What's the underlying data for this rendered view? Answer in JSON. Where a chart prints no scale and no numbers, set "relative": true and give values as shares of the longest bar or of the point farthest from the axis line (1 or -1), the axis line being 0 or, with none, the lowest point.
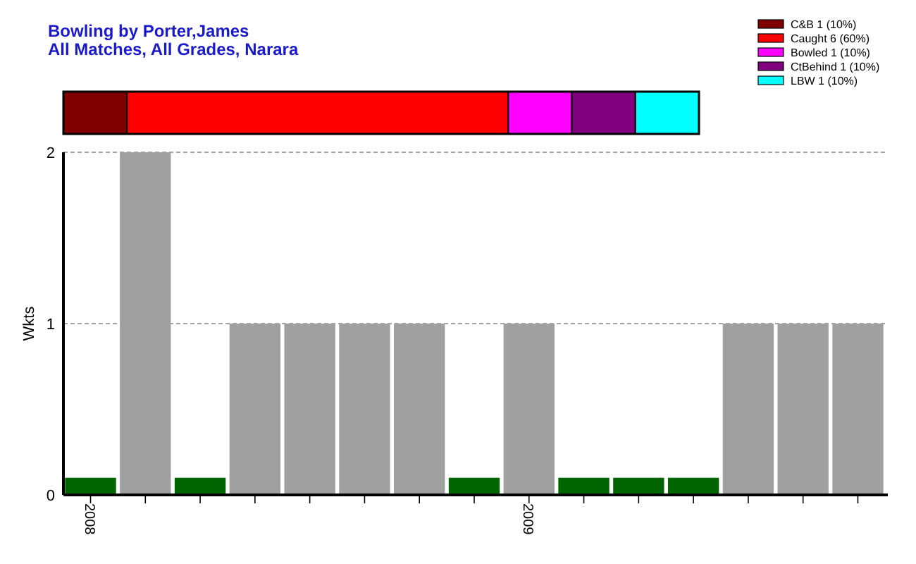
{
  "chart_data": [
    {
      "type": "bar",
      "title": "Bowling by Porter,James",
      "subtitle": "All Matches, All Grades, Narara",
      "orientation": "horizontal",
      "stacked": true,
      "relative": true,
      "categories": [
        null
      ],
      "legend": "top right",
      "series": [
        {
          "name": "C&B 1 (10%)",
          "color": "#800000",
          "values": [
            0.1
          ]
        },
        {
          "name": "Caught 6 (60%)",
          "color": "#ff0000",
          "values": [
            0.6
          ]
        },
        {
          "name": "Bowled 1 (10%)",
          "color": "#ff00ff",
          "values": [
            0.1
          ]
        },
        {
          "name": "CtBehind 1 (10%)",
          "color": "#800080",
          "values": [
            0.1
          ]
        },
        {
          "name": "LBW 1 (10%)",
          "color": "#00ffff",
          "values": [
            0.1
          ]
        }
      ]
    },
    {
      "type": "bar",
      "ylabel": "Wkts",
      "categories": [
        "2008",
        null,
        null,
        null,
        null,
        null,
        null,
        null,
        "2009",
        null,
        null,
        null,
        null,
        null,
        null
      ],
      "values": [
        0.1,
        2,
        0.1,
        1,
        1,
        1,
        1,
        0.1,
        1,
        0.1,
        0.1,
        0.1,
        1,
        1,
        1
      ],
      "colors": [
        "#006400",
        "#a0a0a0",
        "#006400",
        "#a0a0a0",
        "#a0a0a0",
        "#a0a0a0",
        "#a0a0a0",
        "#006400",
        "#a0a0a0",
        "#006400",
        "#006400",
        "#006400",
        "#a0a0a0",
        "#a0a0a0",
        "#a0a0a0"
      ],
      "ylim": [
        0,
        2
      ],
      "yticks": [
        0,
        1,
        2
      ],
      "grid": "y"
    }
  ]
}
